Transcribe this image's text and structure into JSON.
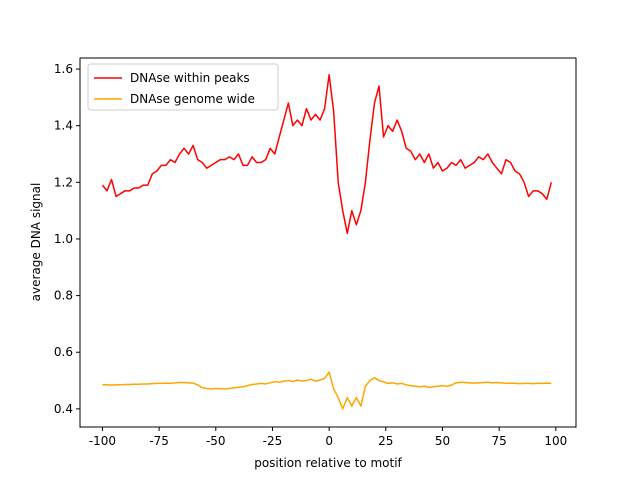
{
  "chart_data": {
    "type": "line",
    "xlabel": "position relative to motif",
    "ylabel": "average DNA signal",
    "x": [
      -100,
      -98,
      -96,
      -94,
      -92,
      -90,
      -88,
      -86,
      -84,
      -82,
      -80,
      -78,
      -76,
      -74,
      -72,
      -70,
      -68,
      -66,
      -64,
      -62,
      -60,
      -58,
      -56,
      -54,
      -52,
      -50,
      -48,
      -46,
      -44,
      -42,
      -40,
      -38,
      -36,
      -34,
      -32,
      -30,
      -28,
      -26,
      -24,
      -22,
      -20,
      -18,
      -16,
      -14,
      -12,
      -10,
      -8,
      -6,
      -4,
      -2,
      0,
      2,
      4,
      6,
      8,
      10,
      12,
      14,
      16,
      18,
      20,
      22,
      24,
      26,
      28,
      30,
      32,
      34,
      36,
      38,
      40,
      42,
      44,
      46,
      48,
      50,
      52,
      54,
      56,
      58,
      60,
      62,
      64,
      66,
      68,
      70,
      72,
      74,
      76,
      78,
      80,
      82,
      84,
      86,
      88,
      90,
      92,
      94,
      96,
      98
    ],
    "series": [
      {
        "name": "DNAse within peaks",
        "color": "#ff0000",
        "values": [
          1.19,
          1.17,
          1.21,
          1.15,
          1.16,
          1.17,
          1.17,
          1.18,
          1.18,
          1.19,
          1.19,
          1.23,
          1.24,
          1.26,
          1.26,
          1.28,
          1.27,
          1.3,
          1.32,
          1.3,
          1.33,
          1.28,
          1.27,
          1.25,
          1.26,
          1.27,
          1.28,
          1.28,
          1.29,
          1.28,
          1.3,
          1.26,
          1.26,
          1.29,
          1.27,
          1.27,
          1.28,
          1.32,
          1.3,
          1.36,
          1.42,
          1.48,
          1.4,
          1.42,
          1.4,
          1.46,
          1.42,
          1.44,
          1.42,
          1.46,
          1.58,
          1.45,
          1.2,
          1.1,
          1.02,
          1.1,
          1.05,
          1.1,
          1.2,
          1.35,
          1.48,
          1.54,
          1.36,
          1.4,
          1.38,
          1.42,
          1.38,
          1.32,
          1.31,
          1.28,
          1.3,
          1.27,
          1.3,
          1.25,
          1.27,
          1.24,
          1.25,
          1.27,
          1.26,
          1.28,
          1.25,
          1.26,
          1.27,
          1.29,
          1.28,
          1.3,
          1.27,
          1.25,
          1.23,
          1.28,
          1.27,
          1.24,
          1.23,
          1.2,
          1.15,
          1.17,
          1.17,
          1.16,
          1.14,
          1.2
        ]
      },
      {
        "name": "DNAse genome wide",
        "color": "#ffa500",
        "values": [
          0.485,
          0.485,
          0.484,
          0.485,
          0.485,
          0.486,
          0.486,
          0.487,
          0.487,
          0.488,
          0.488,
          0.489,
          0.49,
          0.49,
          0.491,
          0.49,
          0.492,
          0.493,
          0.493,
          0.492,
          0.491,
          0.485,
          0.475,
          0.472,
          0.47,
          0.472,
          0.471,
          0.47,
          0.472,
          0.474,
          0.476,
          0.478,
          0.482,
          0.486,
          0.488,
          0.49,
          0.488,
          0.492,
          0.496,
          0.494,
          0.498,
          0.5,
          0.496,
          0.502,
          0.498,
          0.5,
          0.505,
          0.498,
          0.502,
          0.508,
          0.53,
          0.47,
          0.44,
          0.4,
          0.44,
          0.41,
          0.44,
          0.41,
          0.48,
          0.5,
          0.51,
          0.5,
          0.495,
          0.49,
          0.492,
          0.488,
          0.49,
          0.485,
          0.482,
          0.48,
          0.478,
          0.48,
          0.476,
          0.478,
          0.48,
          0.482,
          0.48,
          0.484,
          0.492,
          0.494,
          0.493,
          0.492,
          0.491,
          0.492,
          0.493,
          0.494,
          0.492,
          0.493,
          0.492,
          0.49,
          0.491,
          0.49,
          0.489,
          0.49,
          0.49,
          0.489,
          0.49,
          0.49,
          0.491,
          0.49
        ]
      }
    ],
    "xlim": [
      -109.9,
      108.9
    ],
    "ylim": [
      0.336,
      1.639
    ],
    "xticks": [
      -100,
      -75,
      -50,
      -25,
      0,
      25,
      50,
      75,
      100
    ],
    "yticks": [
      0.4,
      0.6,
      0.8,
      {
        "value": 1,
        "label": "1.0"
      },
      1.2,
      1.4,
      1.6
    ],
    "legend": "upper left",
    "grid": false
  }
}
